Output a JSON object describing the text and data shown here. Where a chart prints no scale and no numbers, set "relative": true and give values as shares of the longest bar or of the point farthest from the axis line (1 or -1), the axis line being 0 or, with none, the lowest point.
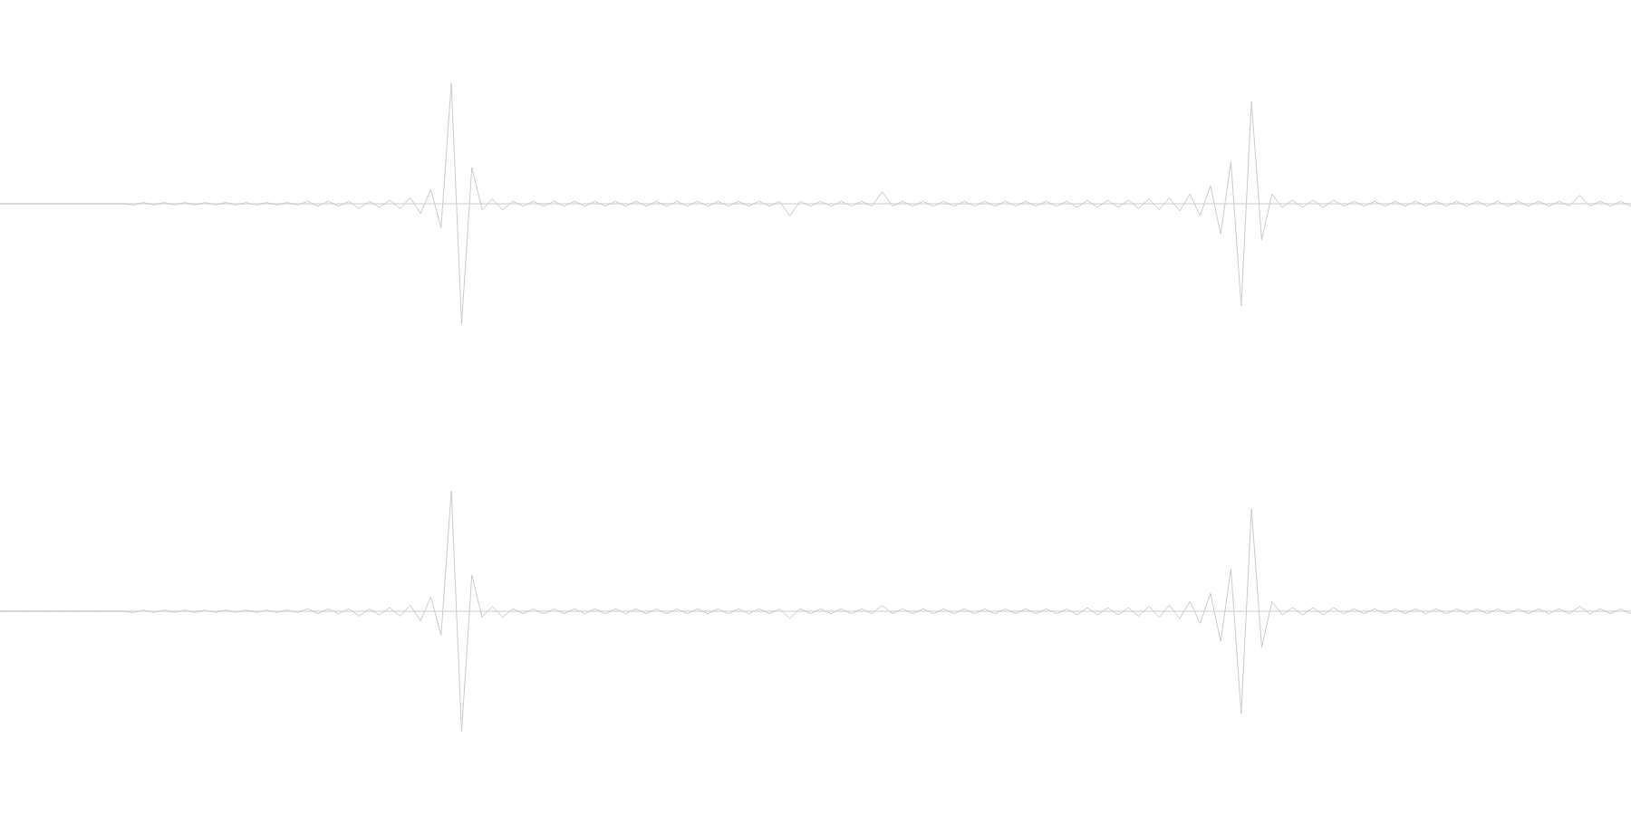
{
  "chart_data": [
    {
      "type": "line",
      "relative": true,
      "categories": [
        null,
        null,
        null,
        null,
        null,
        null,
        null,
        null,
        null,
        null,
        null,
        null,
        null,
        null,
        null,
        null,
        null,
        null,
        null,
        null,
        null,
        null,
        null,
        null,
        null,
        null,
        null,
        null,
        null,
        null,
        null,
        null,
        null,
        null,
        null,
        null,
        null,
        null,
        null,
        null,
        null,
        null,
        null,
        null,
        null,
        null,
        null,
        null,
        null,
        null,
        null,
        null,
        null,
        null,
        null,
        null,
        null,
        null,
        null,
        null,
        null,
        null,
        null,
        null,
        null,
        null,
        null,
        null,
        null,
        null,
        null,
        null,
        null,
        null,
        null,
        null,
        null,
        null,
        null,
        null,
        null,
        null,
        null,
        null,
        null,
        null,
        null,
        null,
        null,
        null,
        null,
        null,
        null,
        null,
        null,
        null,
        null,
        null,
        null,
        null,
        null,
        null,
        null,
        null,
        null,
        null,
        null,
        null,
        null,
        null,
        null,
        null,
        null,
        null,
        null,
        null,
        null,
        null,
        null,
        null,
        null,
        null,
        null,
        null,
        null,
        null,
        null,
        null,
        null,
        null,
        null,
        null,
        null,
        null,
        null,
        null,
        null,
        null,
        null,
        null,
        null,
        null,
        null,
        null,
        null,
        null,
        null,
        null,
        null,
        null,
        null,
        null,
        null,
        null,
        null,
        null,
        null,
        null,
        null,
        null
      ],
      "series": [
        {
          "color": "#cccccc",
          "values": [
            0,
            0,
            0,
            0,
            0,
            0,
            0,
            0,
            0,
            0,
            0,
            0,
            0,
            -0.01,
            0.01,
            -0.01,
            0.01,
            -0.01,
            0.01,
            -0.01,
            0.01,
            -0.01,
            0.01,
            -0.01,
            0.01,
            -0.01,
            0.01,
            -0.01,
            0.01,
            -0.01,
            0.02,
            -0.02,
            0.02,
            -0.02,
            0.02,
            -0.04,
            0.02,
            -0.03,
            0.03,
            -0.04,
            0.05,
            -0.08,
            0.12,
            -0.2,
            1,
            -1,
            0.3,
            -0.05,
            0.04,
            -0.05,
            0.02,
            -0.02,
            0.02,
            -0.02,
            0.02,
            -0.02,
            0.02,
            -0.02,
            0.02,
            -0.02,
            0.02,
            -0.02,
            0.02,
            -0.02,
            0.02,
            -0.02,
            0.02,
            -0.02,
            0.02,
            -0.02,
            0.02,
            -0.02,
            0.02,
            -0.02,
            0.02,
            -0.02,
            0.02,
            -0.1,
            0.02,
            -0.02,
            0.02,
            -0.02,
            0.02,
            -0.02,
            0.02,
            -0.02,
            0.1,
            -0.02,
            0.02,
            -0.02,
            0.02,
            -0.02,
            0.02,
            -0.02,
            0.02,
            -0.02,
            0.02,
            -0.02,
            0.02,
            -0.02,
            0.02,
            -0.02,
            0.02,
            -0.02,
            0.02,
            -0.03,
            0.03,
            -0.03,
            0.03,
            -0.03,
            0.03,
            -0.04,
            0.04,
            -0.05,
            0.05,
            -0.06,
            0.08,
            -0.1,
            0.15,
            -0.25,
            0.35,
            -0.85,
            0.85,
            -0.3,
            0.08,
            -0.03,
            0.03,
            -0.03,
            0.03,
            -0.03,
            0.03,
            -0.02,
            0.02,
            -0.02,
            0.02,
            -0.02,
            0.02,
            -0.02,
            0.02,
            -0.02,
            0.02,
            -0.02,
            0.02,
            -0.02,
            0.02,
            -0.02,
            0.02,
            -0.02,
            0.02,
            -0.02,
            0.02,
            -0.02,
            0.02,
            -0.02,
            0.07,
            -0.02,
            0.02,
            -0.02,
            0.02,
            -0.02
          ]
        }
      ]
    },
    {
      "type": "line",
      "relative": true,
      "categories": [
        null,
        null,
        null,
        null,
        null,
        null,
        null,
        null,
        null,
        null,
        null,
        null,
        null,
        null,
        null,
        null,
        null,
        null,
        null,
        null,
        null,
        null,
        null,
        null,
        null,
        null,
        null,
        null,
        null,
        null,
        null,
        null,
        null,
        null,
        null,
        null,
        null,
        null,
        null,
        null,
        null,
        null,
        null,
        null,
        null,
        null,
        null,
        null,
        null,
        null,
        null,
        null,
        null,
        null,
        null,
        null,
        null,
        null,
        null,
        null,
        null,
        null,
        null,
        null,
        null,
        null,
        null,
        null,
        null,
        null,
        null,
        null,
        null,
        null,
        null,
        null,
        null,
        null,
        null,
        null,
        null,
        null,
        null,
        null,
        null,
        null,
        null,
        null,
        null,
        null,
        null,
        null,
        null,
        null,
        null,
        null,
        null,
        null,
        null,
        null,
        null,
        null,
        null,
        null,
        null,
        null,
        null,
        null,
        null,
        null,
        null,
        null,
        null,
        null,
        null,
        null,
        null,
        null,
        null,
        null,
        null,
        null,
        null,
        null,
        null,
        null,
        null,
        null,
        null,
        null,
        null,
        null,
        null,
        null,
        null,
        null,
        null,
        null,
        null,
        null,
        null,
        null,
        null,
        null,
        null,
        null,
        null,
        null,
        null,
        null,
        null,
        null,
        null,
        null,
        null,
        null,
        null,
        null,
        null,
        null
      ],
      "series": [
        {
          "color": "#cccccc",
          "values": [
            0,
            0,
            0,
            0,
            0,
            0,
            0,
            0,
            0,
            0,
            0,
            0,
            0,
            -0.01,
            0.01,
            -0.01,
            0.01,
            -0.01,
            0.01,
            -0.01,
            0.01,
            -0.01,
            0.01,
            -0.01,
            0.01,
            -0.01,
            0.01,
            -0.01,
            0.01,
            -0.01,
            0.02,
            -0.02,
            0.02,
            -0.02,
            0.02,
            -0.04,
            0.02,
            -0.03,
            0.03,
            -0.04,
            0.05,
            -0.08,
            0.12,
            -0.2,
            1,
            -1,
            0.3,
            -0.05,
            0.04,
            -0.05,
            0.02,
            -0.02,
            0.02,
            -0.02,
            0.02,
            -0.02,
            0.02,
            -0.02,
            0.02,
            -0.02,
            0.02,
            -0.02,
            0.02,
            -0.02,
            0.02,
            -0.02,
            0.02,
            -0.02,
            0.02,
            -0.02,
            0.02,
            -0.02,
            0.02,
            -0.02,
            0.02,
            -0.02,
            0.02,
            -0.06,
            0.02,
            -0.02,
            0.02,
            -0.02,
            0.02,
            -0.02,
            0.02,
            -0.02,
            0.05,
            -0.02,
            0.02,
            -0.02,
            0.02,
            -0.02,
            0.02,
            -0.02,
            0.02,
            -0.02,
            0.02,
            -0.02,
            0.02,
            -0.02,
            0.02,
            -0.02,
            0.02,
            -0.02,
            0.02,
            -0.03,
            0.03,
            -0.03,
            0.03,
            -0.03,
            0.03,
            -0.04,
            0.04,
            -0.05,
            0.05,
            -0.06,
            0.08,
            -0.1,
            0.15,
            -0.25,
            0.35,
            -0.85,
            0.85,
            -0.3,
            0.08,
            -0.03,
            0.03,
            -0.03,
            0.03,
            -0.03,
            0.03,
            -0.02,
            0.02,
            -0.02,
            0.02,
            -0.02,
            0.02,
            -0.02,
            0.02,
            -0.02,
            0.02,
            -0.02,
            0.02,
            -0.02,
            0.02,
            -0.02,
            0.02,
            -0.02,
            0.02,
            -0.02,
            0.02,
            -0.02,
            0.02,
            -0.02,
            0.04,
            -0.02,
            0.02,
            -0.02,
            0.02,
            -0.02
          ]
        }
      ]
    }
  ]
}
